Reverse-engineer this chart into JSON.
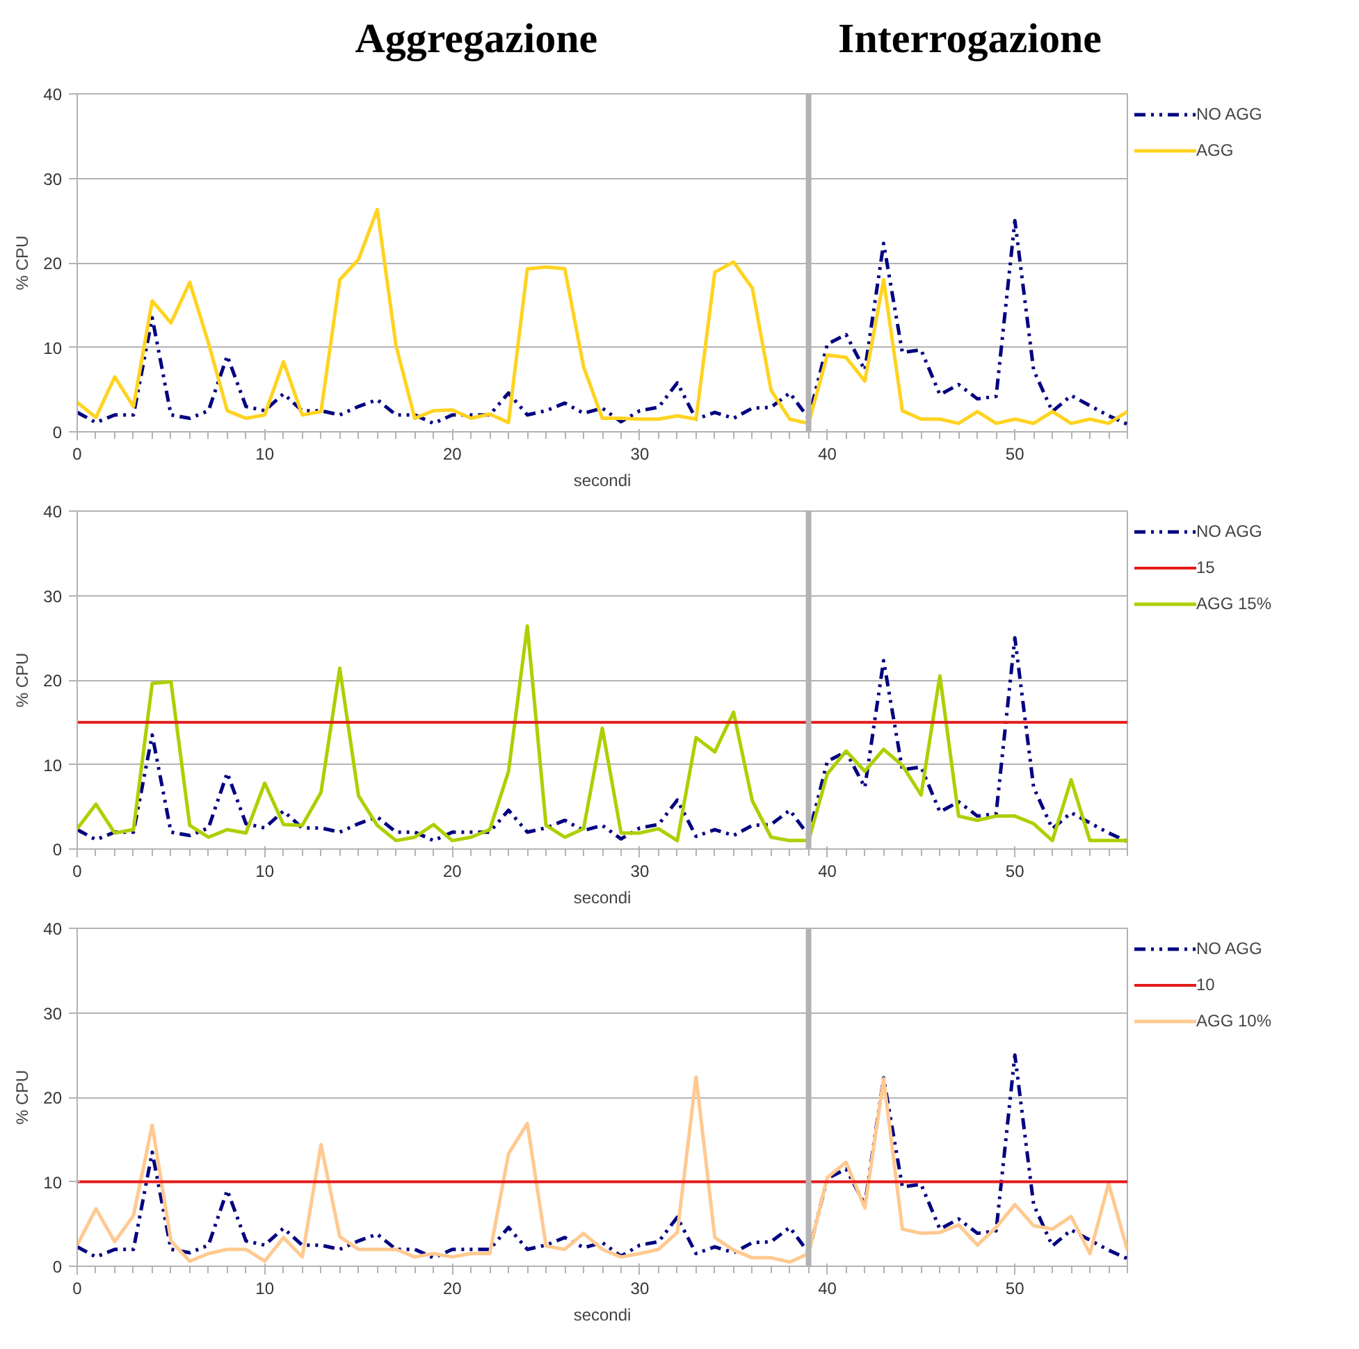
{
  "chart_data": [
    {
      "type": "line",
      "annotations": [
        "Aggregazione",
        "Interrogazione"
      ],
      "xlabel": "secondi",
      "ylabel": "% CPU",
      "x": [
        0,
        1,
        2,
        3,
        4,
        5,
        6,
        7,
        8,
        9,
        10,
        11,
        12,
        13,
        14,
        15,
        16,
        17,
        18,
        19,
        20,
        21,
        22,
        23,
        24,
        25,
        26,
        27,
        28,
        29,
        30,
        31,
        32,
        33,
        34,
        35,
        36,
        37,
        38,
        39,
        40,
        41,
        42,
        43,
        44,
        45,
        46,
        47,
        48,
        49,
        50,
        51,
        52,
        53,
        54,
        55,
        56
      ],
      "xlim": [
        0,
        56
      ],
      "xticks": [
        0,
        10,
        20,
        30,
        40,
        50
      ],
      "ylim": [
        0,
        40
      ],
      "yticks": [
        0,
        10,
        20,
        30,
        40
      ],
      "grid": "y",
      "legend": "right",
      "ref_lines": [
        {
          "axis": "x",
          "value": 39,
          "color": "#b3b3b3"
        }
      ],
      "series": [
        {
          "name": "NO AGG",
          "color": "#000080",
          "line_style": "dashdotdot",
          "values": [
            2.3,
            1.1,
            2,
            2,
            13.5,
            2,
            1.6,
            2.5,
            9,
            3,
            2.5,
            4.5,
            2.5,
            2.5,
            2,
            3,
            3.8,
            2,
            2,
            1,
            2,
            2,
            2,
            4.6,
            2,
            2.5,
            3.4,
            2.2,
            2.8,
            1.2,
            2.5,
            2.9,
            5.8,
            1.5,
            2.3,
            1.6,
            2.8,
            2.9,
            4.6,
            1.6,
            10.4,
            11.5,
            7.3,
            22.3,
            9.4,
            9.7,
            4.4,
            5.6,
            3.9,
            4.2,
            25,
            7.3,
            2.4,
            4.3,
            3.1,
            1.9,
            0.9
          ]
        },
        {
          "name": "AGG",
          "color": "#ffd320",
          "line_style": "solid",
          "values": [
            3.5,
            1.7,
            6.5,
            3,
            15.5,
            12.9,
            17.7,
            10.5,
            2.5,
            1.6,
            2,
            8.3,
            2,
            2.4,
            18,
            20.4,
            26.3,
            10.2,
            1.6,
            2.5,
            2.6,
            1.6,
            2.1,
            1.1,
            19.3,
            19.5,
            19.3,
            7.7,
            1.6,
            1.6,
            1.5,
            1.5,
            1.9,
            1.5,
            18.9,
            20.1,
            17,
            4.9,
            1.5,
            1,
            9.1,
            8.8,
            6,
            18,
            2.5,
            1.5,
            1.5,
            1,
            2.4,
            1,
            1.5,
            1,
            2.4,
            1,
            1.5,
            1,
            2.4
          ]
        }
      ]
    },
    {
      "type": "line",
      "xlabel": "secondi",
      "ylabel": "% CPU",
      "x": [
        0,
        1,
        2,
        3,
        4,
        5,
        6,
        7,
        8,
        9,
        10,
        11,
        12,
        13,
        14,
        15,
        16,
        17,
        18,
        19,
        20,
        21,
        22,
        23,
        24,
        25,
        26,
        27,
        28,
        29,
        30,
        31,
        32,
        33,
        34,
        35,
        36,
        37,
        38,
        39,
        40,
        41,
        42,
        43,
        44,
        45,
        46,
        47,
        48,
        49,
        50,
        51,
        52,
        53,
        54,
        55,
        56
      ],
      "xlim": [
        0,
        56
      ],
      "xticks": [
        0,
        10,
        20,
        30,
        40,
        50
      ],
      "ylim": [
        0,
        40
      ],
      "yticks": [
        0,
        10,
        20,
        30,
        40
      ],
      "grid": "y",
      "legend": "right",
      "ref_lines": [
        {
          "axis": "x",
          "value": 39,
          "color": "#b3b3b3"
        },
        {
          "axis": "y",
          "value": 15,
          "label": "15",
          "color": "#e31b1b"
        }
      ],
      "series": [
        {
          "name": "NO AGG",
          "color": "#000080",
          "line_style": "dashdotdot",
          "values": [
            2.3,
            1.1,
            2,
            2,
            13.5,
            2,
            1.6,
            2.5,
            9,
            3,
            2.5,
            4.5,
            2.5,
            2.5,
            2,
            3,
            3.8,
            2,
            2,
            1,
            2,
            2,
            2,
            4.6,
            2,
            2.5,
            3.4,
            2.2,
            2.8,
            1.2,
            2.5,
            2.9,
            5.8,
            1.5,
            2.3,
            1.6,
            2.8,
            2.9,
            4.6,
            1.6,
            10.4,
            11.5,
            7.3,
            22.3,
            9.4,
            9.7,
            4.4,
            5.6,
            3.9,
            4.2,
            25,
            7.3,
            2.4,
            4.3,
            3.1,
            1.9,
            0.9
          ]
        },
        {
          "name": "AGG 15%",
          "color": "#aecf00",
          "line_style": "solid",
          "values": [
            2.4,
            5.3,
            1.9,
            2.3,
            19.6,
            19.8,
            2.8,
            1.4,
            2.3,
            1.9,
            7.8,
            2.9,
            2.8,
            6.7,
            21.4,
            6.3,
            2.8,
            1,
            1.4,
            2.9,
            1,
            1.4,
            2.3,
            9.2,
            26.4,
            2.8,
            1.4,
            2.4,
            14.3,
            1.9,
            1.9,
            2.4,
            1,
            13.2,
            11.5,
            16.2,
            5.7,
            1.4,
            1,
            1,
            8.9,
            11.6,
            9.2,
            11.8,
            9.9,
            6.4,
            20.5,
            3.9,
            3.4,
            3.9,
            3.9,
            3,
            1,
            8.2,
            1,
            1,
            1
          ]
        }
      ]
    },
    {
      "type": "line",
      "xlabel": "secondi",
      "ylabel": "% CPU",
      "x": [
        0,
        1,
        2,
        3,
        4,
        5,
        6,
        7,
        8,
        9,
        10,
        11,
        12,
        13,
        14,
        15,
        16,
        17,
        18,
        19,
        20,
        21,
        22,
        23,
        24,
        25,
        26,
        27,
        28,
        29,
        30,
        31,
        32,
        33,
        34,
        35,
        36,
        37,
        38,
        39,
        40,
        41,
        42,
        43,
        44,
        45,
        46,
        47,
        48,
        49,
        50,
        51,
        52,
        53,
        54,
        55,
        56
      ],
      "xlim": [
        0,
        56
      ],
      "xticks": [
        0,
        10,
        20,
        30,
        40,
        50
      ],
      "ylim": [
        0,
        40
      ],
      "yticks": [
        0,
        10,
        20,
        30,
        40
      ],
      "grid": "y",
      "legend": "right",
      "ref_lines": [
        {
          "axis": "x",
          "value": 39,
          "color": "#b3b3b3"
        },
        {
          "axis": "y",
          "value": 10,
          "label": "10",
          "color": "#e31b1b"
        }
      ],
      "series": [
        {
          "name": "NO AGG",
          "color": "#000080",
          "line_style": "dashdotdot",
          "values": [
            2.3,
            1.1,
            2,
            2,
            13.5,
            2,
            1.6,
            2.5,
            9,
            3,
            2.5,
            4.5,
            2.5,
            2.5,
            2,
            3,
            3.8,
            2,
            2,
            1,
            2,
            2,
            2,
            4.6,
            2,
            2.5,
            3.4,
            2.2,
            2.8,
            1.2,
            2.5,
            2.9,
            5.8,
            1.5,
            2.3,
            1.6,
            2.8,
            2.9,
            4.6,
            1.6,
            10.4,
            11.5,
            7.3,
            22.3,
            9.4,
            9.7,
            4.4,
            5.6,
            3.9,
            4.2,
            25,
            7.3,
            2.4,
            4.3,
            3.1,
            1.9,
            0.9
          ]
        },
        {
          "name": "AGG 10%",
          "color": "#ffc990",
          "line_style": "solid",
          "values": [
            2.5,
            6.8,
            2.9,
            6,
            16.7,
            3,
            0.6,
            1.5,
            2,
            2,
            0.6,
            3.4,
            1.1,
            14.4,
            3.5,
            2,
            2,
            2,
            1.1,
            1.5,
            1.1,
            1.5,
            1.5,
            13.3,
            16.9,
            2.4,
            2,
            3.9,
            2,
            1.1,
            1.5,
            2,
            4,
            22.4,
            3.4,
            1.9,
            1,
            1,
            0.5,
            1.5,
            10.5,
            12.3,
            6.9,
            22.2,
            4.4,
            3.9,
            4,
            4.9,
            2.5,
            4.6,
            7.3,
            4.8,
            4.4,
            5.9,
            1.5,
            9.8,
            1.9
          ]
        }
      ]
    }
  ]
}
